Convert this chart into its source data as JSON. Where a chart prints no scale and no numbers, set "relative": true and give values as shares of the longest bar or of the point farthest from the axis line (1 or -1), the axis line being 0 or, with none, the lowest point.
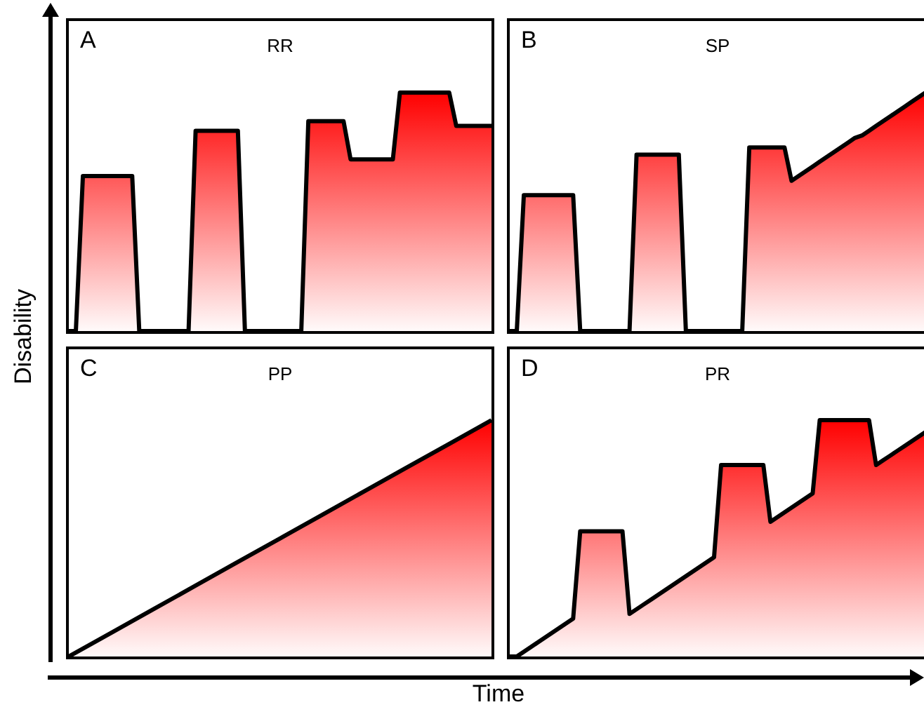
{
  "chart_data": [
    {
      "type": "area",
      "title": "RR",
      "annotations": [
        "A"
      ],
      "relative": true,
      "ylabel": "Disability",
      "categories": [
        null,
        null,
        null,
        null,
        null,
        null,
        null,
        null,
        null,
        null,
        null,
        null,
        null,
        null,
        null,
        null,
        null,
        null,
        null,
        null,
        null,
        null,
        null,
        null,
        null,
        null,
        null,
        null,
        null,
        null,
        null,
        null,
        null,
        null,
        null,
        null,
        null,
        null,
        null,
        null,
        null,
        null,
        null,
        null,
        null,
        null,
        null,
        null,
        null,
        null,
        null,
        null,
        null,
        null,
        null,
        null,
        null,
        null,
        null,
        null,
        null
      ],
      "series": [
        {
          "color": "#ff0000",
          "values": [
            0,
            0,
            0.65,
            0.65,
            0.65,
            0.65,
            0.65,
            0.65,
            0.65,
            0.65,
            0,
            0,
            0,
            0,
            0,
            0,
            0,
            0,
            0.84,
            0.84,
            0.84,
            0.84,
            0.84,
            0.84,
            0.84,
            0,
            0,
            0,
            0,
            0,
            0,
            0,
            0,
            0,
            0.88,
            0.88,
            0.88,
            0.88,
            0.88,
            0.88,
            0.72,
            0.72,
            0.72,
            0.72,
            0.72,
            0.72,
            0.72,
            1,
            1,
            1,
            1,
            1,
            1,
            1,
            1,
            0.86,
            0.86,
            0.86,
            0.86,
            0.86,
            0.86
          ]
        }
      ]
    },
    {
      "type": "area",
      "title": "SP",
      "annotations": [
        "B"
      ],
      "relative": true,
      "categories": [
        null,
        null,
        null,
        null,
        null,
        null,
        null,
        null,
        null,
        null,
        null,
        null,
        null,
        null,
        null,
        null,
        null,
        null,
        null,
        null,
        null,
        null,
        null,
        null,
        null,
        null,
        null,
        null,
        null,
        null,
        null,
        null,
        null,
        null,
        null,
        null,
        null,
        null,
        null,
        null,
        null,
        null,
        null,
        null,
        null,
        null,
        null,
        null,
        null,
        null,
        null,
        null,
        null,
        null,
        null,
        null,
        null,
        null,
        null,
        null
      ],
      "series": [
        {
          "color": "#ff0000",
          "values": [
            0,
            0,
            0.57,
            0.57,
            0.57,
            0.57,
            0.57,
            0.57,
            0.57,
            0.57,
            0,
            0,
            0,
            0,
            0,
            0,
            0,
            0,
            0.74,
            0.74,
            0.74,
            0.74,
            0.74,
            0.74,
            0.74,
            0,
            0,
            0,
            0,
            0,
            0,
            0,
            0,
            0,
            0.77,
            0.77,
            0.77,
            0.77,
            0.77,
            0.77,
            0.63,
            0.65,
            0.67,
            0.69,
            0.71,
            0.73,
            0.75,
            0.77,
            0.79,
            0.81,
            0.82,
            0.84,
            0.86,
            0.88,
            0.9,
            0.92,
            0.94,
            0.96,
            0.98,
            1
          ]
        }
      ]
    },
    {
      "type": "area",
      "title": "PP",
      "annotations": [
        "C"
      ],
      "relative": true,
      "xlabel": "Time",
      "categories": [
        null,
        null,
        null,
        null,
        null,
        null,
        null,
        null,
        null,
        null,
        null
      ],
      "series": [
        {
          "color": "#ff0000",
          "values": [
            0,
            0.1,
            0.2,
            0.3,
            0.4,
            0.5,
            0.6,
            0.7,
            0.8,
            0.9,
            1
          ]
        }
      ]
    },
    {
      "type": "area",
      "title": "PR",
      "annotations": [
        "D"
      ],
      "relative": true,
      "categories": [
        null,
        null,
        null,
        null,
        null,
        null,
        null,
        null,
        null,
        null,
        null,
        null,
        null,
        null,
        null,
        null,
        null,
        null,
        null,
        null,
        null,
        null,
        null,
        null,
        null,
        null,
        null,
        null,
        null,
        null,
        null,
        null,
        null,
        null,
        null,
        null,
        null,
        null,
        null,
        null,
        null,
        null,
        null,
        null,
        null,
        null,
        null,
        null,
        null,
        null,
        null,
        null,
        null,
        null,
        null,
        null,
        null,
        null,
        null,
        null
      ],
      "series": [
        {
          "color": "#ff0000",
          "values": [
            0,
            0,
            0.02,
            0.04,
            0.06,
            0.08,
            0.1,
            0.12,
            0.14,
            0.16,
            0.53,
            0.53,
            0.53,
            0.53,
            0.53,
            0.53,
            0.53,
            0.18,
            0.2,
            0.22,
            0.24,
            0.26,
            0.28,
            0.3,
            0.32,
            0.34,
            0.36,
            0.38,
            0.4,
            0.42,
            0.81,
            0.81,
            0.81,
            0.81,
            0.81,
            0.81,
            0.81,
            0.57,
            0.59,
            0.61,
            0.63,
            0.65,
            0.67,
            0.69,
            1,
            1,
            1,
            1,
            1,
            1,
            1,
            1,
            0.81,
            0.83,
            0.85,
            0.87,
            0.89,
            0.91,
            0.93,
            0.95
          ]
        }
      ]
    }
  ]
}
